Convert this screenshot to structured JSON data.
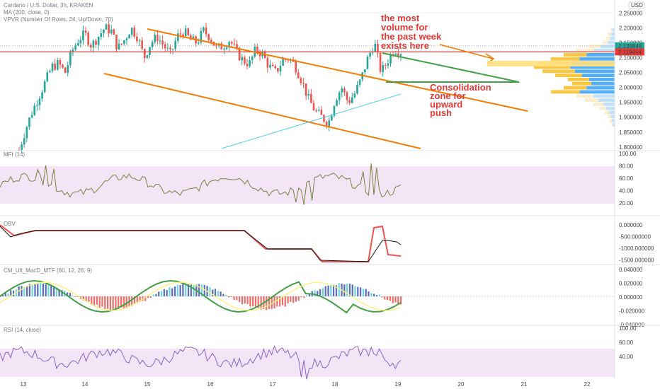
{
  "legend": {
    "title": "Cardano / U.S. Dollar, 3h, KRAKEN",
    "ma": "MA (200, close, 0)",
    "vpvr": "VPVR (Number Of Rows, 24, Up/Down, 70)"
  },
  "price_labels": {
    "current": "2.139846",
    "red_line": "2.119464",
    "currency": "USD"
  },
  "annotations": {
    "volume_note": [
      "the most",
      "volume for",
      "the past week",
      "exists here"
    ],
    "consolidation_note": [
      "Consolidation",
      "zone for",
      "upward",
      "push"
    ]
  },
  "panes": {
    "mfi": {
      "label": "MFI (14)",
      "ticks": [
        "100.00",
        "80.00",
        "60.00",
        "40.00",
        "20.00"
      ]
    },
    "obv": {
      "label": "OBV",
      "ticks": [
        "0.000000",
        "-500.000000",
        "-1000.000000",
        "-1500.000000"
      ]
    },
    "macd": {
      "label": "CM_Ult_MacD_MTF (60, 12, 26, 9)",
      "ticks": [
        "0.040000",
        "0.020000",
        "0.000000",
        "-0.020000",
        "-0.040000"
      ]
    },
    "rsi": {
      "label": "RSI (14, close)",
      "ticks": [
        "100.00",
        "60.00",
        "40.00"
      ]
    }
  },
  "colors": {
    "up": "#26a69a",
    "down": "#ef5350",
    "channel": "#f57c00",
    "triangle": "#43a047",
    "hline": "#e53935",
    "trend": "#4dd0e1",
    "band": "#f3e5f5",
    "osc": "#7e57c2",
    "annotation": "#e53935"
  },
  "chart_data": {
    "type": "candlestick",
    "symbol": "ADA/USD",
    "timeframe": "3h",
    "x_ticks": [
      "13",
      "14",
      "15",
      "16",
      "17",
      "18",
      "19",
      "20",
      "21",
      "22"
    ],
    "y_ticks": [
      2.25,
      2.2,
      2.15,
      2.1,
      2.05,
      2.0,
      1.95,
      1.9,
      1.85,
      1.8
    ],
    "ylim": [
      1.79,
      2.27
    ],
    "last_price": 2.139846,
    "horizontal_level": 2.119464,
    "close_path": [
      1.79,
      1.86,
      1.92,
      1.97,
      2.02,
      2.07,
      2.08,
      2.05,
      2.12,
      2.16,
      2.18,
      2.14,
      2.17,
      2.2,
      2.19,
      2.13,
      2.16,
      2.2,
      2.17,
      2.1,
      2.15,
      2.17,
      2.14,
      2.11,
      2.17,
      2.19,
      2.16,
      2.15,
      2.19,
      2.17,
      2.13,
      2.14,
      2.16,
      2.12,
      2.09,
      2.08,
      2.13,
      2.11,
      2.07,
      2.05,
      2.09,
      2.1,
      2.07,
      2.02,
      1.96,
      1.92,
      1.9,
      1.88,
      1.96,
      2.0,
      1.95,
      1.98,
      2.03,
      2.1,
      2.15,
      2.05,
      2.09,
      2.13,
      2.12
    ],
    "vpvr_profile": [
      0.05,
      0.08,
      0.1,
      0.14,
      0.3,
      0.45,
      0.6,
      0.75,
      0.9,
      0.95,
      0.85,
      0.7,
      0.55,
      0.5,
      0.6,
      0.75,
      0.45,
      0.35,
      0.25,
      0.18,
      0.12,
      0.08,
      0.06,
      0.04
    ]
  }
}
